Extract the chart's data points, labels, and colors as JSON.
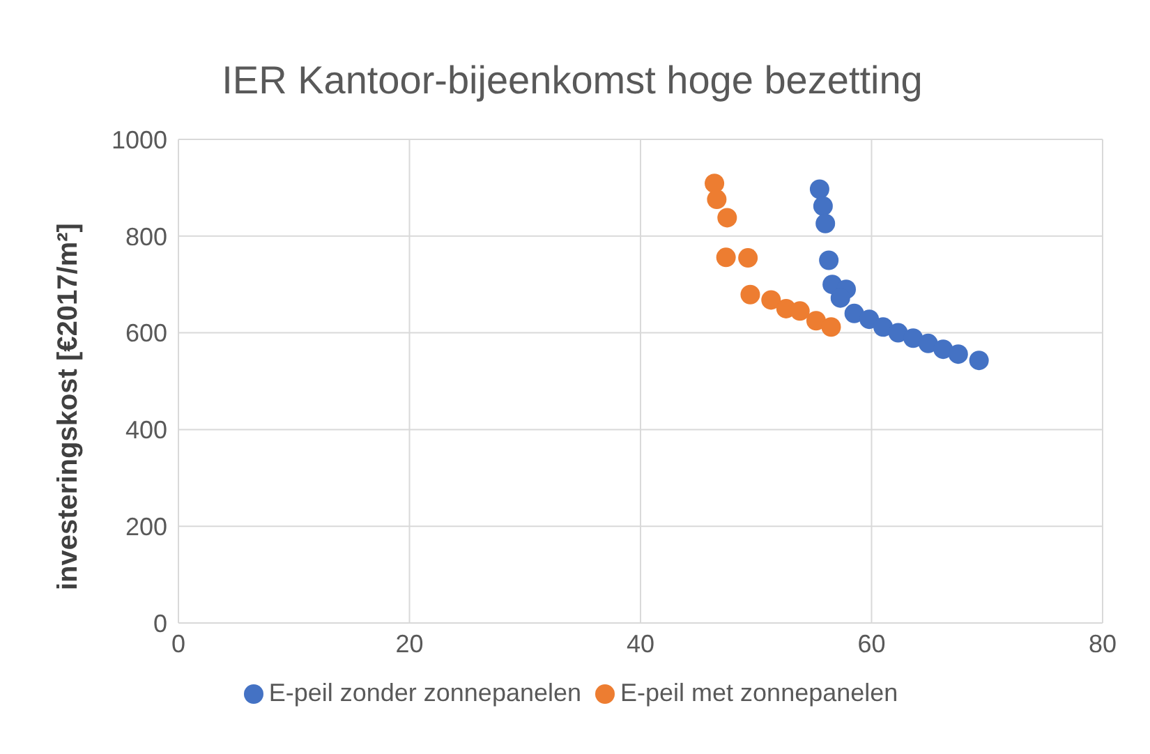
{
  "chart_data": {
    "type": "scatter",
    "title": "IER Kantoor-bijeenkomst hoge bezetting",
    "ylabel": "investeringskost [€2017/m²]",
    "xlim": [
      0,
      80
    ],
    "xticks": [
      0,
      20,
      40,
      60,
      80
    ],
    "ylim": [
      0,
      1000
    ],
    "yticks": [
      0,
      200,
      400,
      600,
      800,
      1000
    ],
    "grid": true,
    "legend": "bottom",
    "marker": "circle",
    "series": [
      {
        "name": "E-peil zonder zonnepanelen",
        "color": "#4472c4",
        "x": [
          55.5,
          55.8,
          56.0,
          56.3,
          56.6,
          57.8,
          57.3,
          58.5,
          59.8,
          61.0,
          62.3,
          63.6,
          64.9,
          66.2,
          67.5,
          69.3
        ],
        "values": [
          897,
          862,
          826,
          750,
          700,
          690,
          672,
          640,
          628,
          612,
          600,
          589,
          578,
          566,
          556,
          543
        ]
      },
      {
        "name": "E-peil met zonnepanelen",
        "color": "#ed7d31",
        "x": [
          46.4,
          46.6,
          47.5,
          47.4,
          49.3,
          49.5,
          51.3,
          52.6,
          53.8,
          55.2,
          56.5
        ],
        "values": [
          909,
          876,
          838,
          756,
          755,
          679,
          668,
          650,
          645,
          625,
          612
        ]
      }
    ]
  }
}
